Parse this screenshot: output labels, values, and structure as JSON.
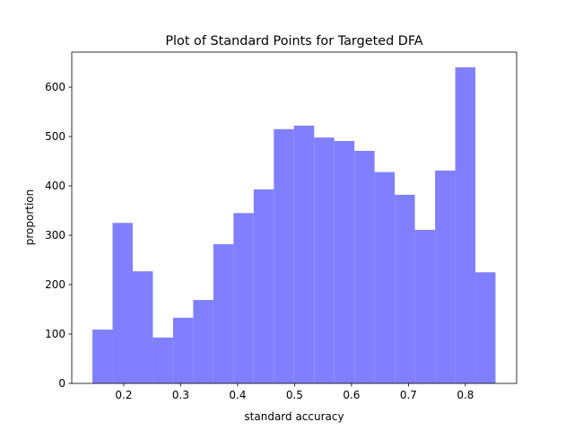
{
  "chart_data": {
    "type": "histogram",
    "title": "Plot of Standard Points for Targeted DFA",
    "x_label": "standard accuracy",
    "y_label": "proportion",
    "bins": [
      0.145,
      0.1804,
      0.2158,
      0.2512,
      0.2866,
      0.322,
      0.3574,
      0.3928,
      0.4282,
      0.4636,
      0.499,
      0.5344,
      0.5698,
      0.6052,
      0.6406,
      0.676,
      0.7114,
      0.7468,
      0.7822,
      0.8176,
      0.853
    ],
    "values": [
      109,
      325,
      227,
      93,
      133,
      169,
      282,
      345,
      393,
      515,
      522,
      498,
      491,
      471,
      428,
      382,
      311,
      431,
      640,
      225
    ],
    "color": "#8080ff",
    "xlim": [
      0.1087,
      0.89
    ],
    "ylim": [
      0,
      671
    ],
    "xticks": [
      0.2,
      0.3,
      0.4,
      0.5,
      0.6,
      0.7,
      0.8
    ],
    "yticks": [
      0,
      100,
      200,
      300,
      400,
      500,
      600
    ]
  }
}
